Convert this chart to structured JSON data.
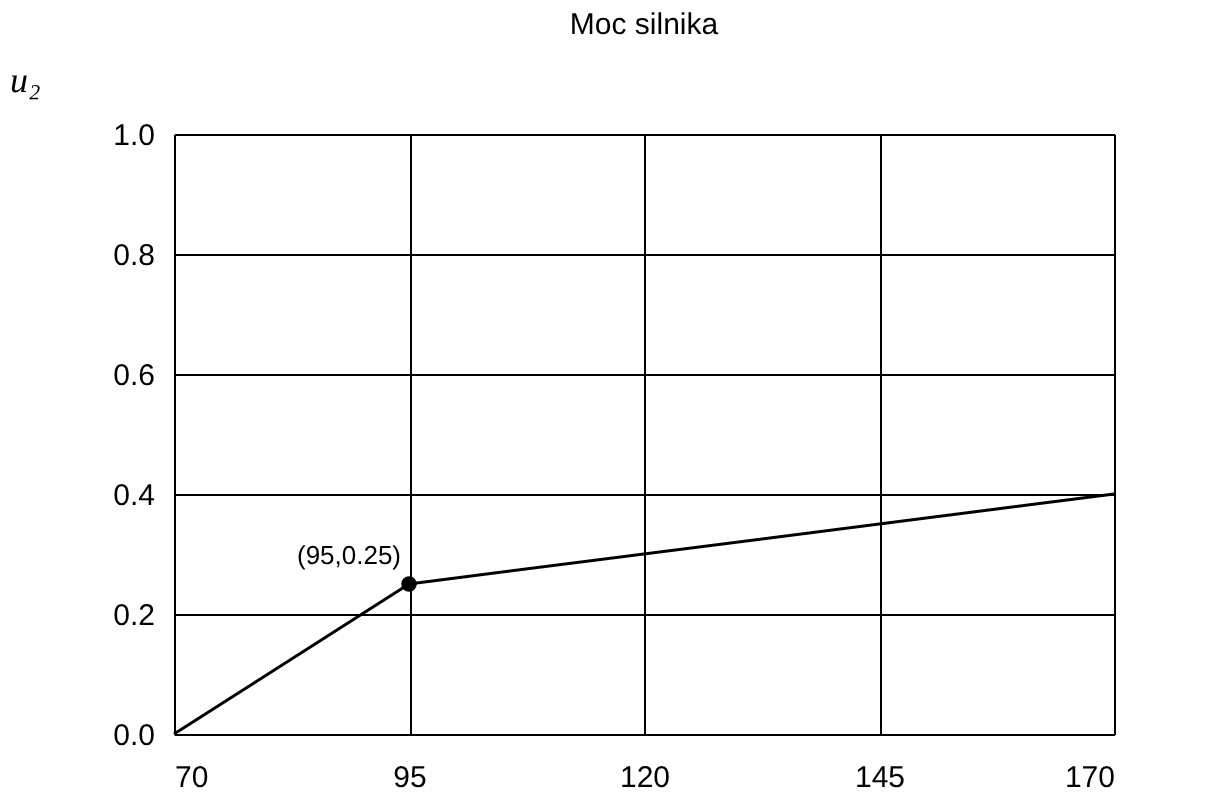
{
  "chart_data": {
    "type": "line",
    "title": "Moc silnika",
    "ylabel": "u₂",
    "xlim": [
      70,
      170
    ],
    "xticks": [
      70,
      95,
      120,
      145,
      170
    ],
    "ylim": [
      0,
      1
    ],
    "yticks": [
      {
        "value": 0,
        "label": "0.0"
      },
      {
        "value": 0.2,
        "label": "0.2"
      },
      {
        "value": 0.4,
        "label": "0.4"
      },
      {
        "value": 0.6,
        "label": "0.6"
      },
      {
        "value": 0.8,
        "label": "0.8"
      },
      {
        "value": 1,
        "label": "1.0"
      }
    ],
    "grid": true,
    "series": [
      {
        "color": "#000000",
        "x": [
          70,
          95,
          170
        ],
        "values": [
          0,
          0.25,
          0.4
        ],
        "marker": "none",
        "line_style": "solid"
      },
      {
        "type": "scatter",
        "color": "#000000",
        "x": [
          95
        ],
        "values": [
          0.25
        ],
        "marker": "circle"
      }
    ],
    "annotations": [
      {
        "text": "(95,0.25)",
        "x": 95,
        "y": 0.25
      }
    ]
  }
}
